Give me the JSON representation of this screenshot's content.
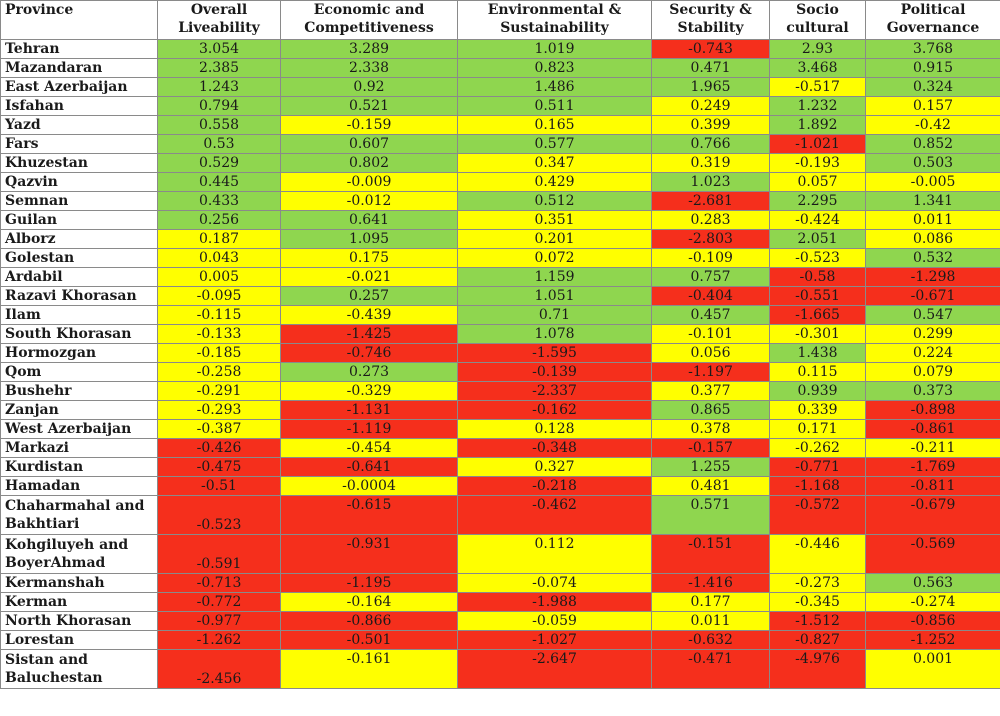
{
  "headers": [
    "Province",
    "Overall Liveability",
    "Economic and Competitiveness",
    "Environmental & Sustainability",
    "Security & Stability",
    "Socio cultural",
    "Political Governance"
  ],
  "colors": {
    "green": "#8fd64f",
    "yellow": "#ffff00",
    "red": "#f52f1c"
  },
  "rows": [
    {
      "province": "Tehran",
      "values": [
        "3.054",
        "3.289",
        "1.019",
        "-0.743",
        "2.93",
        "3.768"
      ],
      "colors": [
        "g",
        "g",
        "g",
        "r",
        "g",
        "g"
      ]
    },
    {
      "province": "Mazandaran",
      "values": [
        "2.385",
        "2.338",
        "0.823",
        "0.471",
        "3.468",
        "0.915"
      ],
      "colors": [
        "g",
        "g",
        "g",
        "g",
        "g",
        "g"
      ]
    },
    {
      "province": "East Azerbaijan",
      "values": [
        "1.243",
        "0.92",
        "1.486",
        "1.965",
        "-0.517",
        "0.324"
      ],
      "colors": [
        "g",
        "g",
        "g",
        "g",
        "y",
        "g"
      ]
    },
    {
      "province": "Isfahan",
      "values": [
        "0.794",
        "0.521",
        "0.511",
        "0.249",
        "1.232",
        "0.157"
      ],
      "colors": [
        "g",
        "g",
        "g",
        "y",
        "g",
        "y"
      ]
    },
    {
      "province": "Yazd",
      "values": [
        "0.558",
        "-0.159",
        "0.165",
        "0.399",
        "1.892",
        "-0.42"
      ],
      "colors": [
        "g",
        "y",
        "y",
        "y",
        "g",
        "y"
      ]
    },
    {
      "province": "Fars",
      "values": [
        "0.53",
        "0.607",
        "0.577",
        "0.766",
        "-1.021",
        "0.852"
      ],
      "colors": [
        "g",
        "g",
        "g",
        "g",
        "r",
        "g"
      ]
    },
    {
      "province": "Khuzestan",
      "values": [
        "0.529",
        "0.802",
        "0.347",
        "0.319",
        "-0.193",
        "0.503"
      ],
      "colors": [
        "g",
        "g",
        "y",
        "y",
        "y",
        "g"
      ]
    },
    {
      "province": "Qazvin",
      "values": [
        "0.445",
        "-0.009",
        "0.429",
        "1.023",
        "0.057",
        "-0.005"
      ],
      "colors": [
        "g",
        "y",
        "y",
        "g",
        "y",
        "y"
      ]
    },
    {
      "province": "Semnan",
      "values": [
        "0.433",
        "-0.012",
        "0.512",
        "-2.681",
        "2.295",
        "1.341"
      ],
      "colors": [
        "g",
        "y",
        "g",
        "r",
        "g",
        "g"
      ]
    },
    {
      "province": "Guilan",
      "values": [
        "0.256",
        "0.641",
        "0.351",
        "0.283",
        "-0.424",
        "0.011"
      ],
      "colors": [
        "g",
        "g",
        "y",
        "y",
        "y",
        "y"
      ]
    },
    {
      "province": "Alborz",
      "values": [
        "0.187",
        "1.095",
        "0.201",
        "-2.803",
        "2.051",
        "0.086"
      ],
      "colors": [
        "y",
        "g",
        "y",
        "r",
        "g",
        "y"
      ]
    },
    {
      "province": "Golestan",
      "values": [
        "0.043",
        "0.175",
        "0.072",
        "-0.109",
        "-0.523",
        "0.532"
      ],
      "colors": [
        "y",
        "y",
        "y",
        "y",
        "y",
        "g"
      ]
    },
    {
      "province": "Ardabil",
      "values": [
        "0.005",
        "-0.021",
        "1.159",
        "0.757",
        "-0.58",
        "-1.298"
      ],
      "colors": [
        "y",
        "y",
        "g",
        "g",
        "r",
        "r"
      ]
    },
    {
      "province": "Razavi Khorasan",
      "values": [
        "-0.095",
        "0.257",
        "1.051",
        "-0.404",
        "-0.551",
        "-0.671"
      ],
      "colors": [
        "y",
        "g",
        "g",
        "r",
        "r",
        "r"
      ]
    },
    {
      "province": "Ilam",
      "values": [
        "-0.115",
        "-0.439",
        "0.71",
        "0.457",
        "-1.665",
        "0.547"
      ],
      "colors": [
        "y",
        "y",
        "g",
        "g",
        "r",
        "g"
      ]
    },
    {
      "province": "South Khorasan",
      "values": [
        "-0.133",
        "-1.425",
        "1.078",
        "-0.101",
        "-0.301",
        "0.299"
      ],
      "colors": [
        "y",
        "r",
        "g",
        "y",
        "y",
        "y"
      ]
    },
    {
      "province": "Hormozgan",
      "values": [
        "-0.185",
        "-0.746",
        "-1.595",
        "0.056",
        "1.438",
        "0.224"
      ],
      "colors": [
        "y",
        "r",
        "r",
        "y",
        "g",
        "y"
      ]
    },
    {
      "province": "Qom",
      "values": [
        "-0.258",
        "0.273",
        "-0.139",
        "-1.197",
        "0.115",
        "0.079"
      ],
      "colors": [
        "y",
        "g",
        "r",
        "r",
        "y",
        "y"
      ]
    },
    {
      "province": "Bushehr",
      "values": [
        "-0.291",
        "-0.329",
        "-2.337",
        "0.377",
        "0.939",
        "0.373"
      ],
      "colors": [
        "y",
        "y",
        "r",
        "y",
        "g",
        "g"
      ]
    },
    {
      "province": "Zanjan",
      "values": [
        "-0.293",
        "-1.131",
        "-0.162",
        "0.865",
        "0.339",
        "-0.898"
      ],
      "colors": [
        "y",
        "r",
        "r",
        "g",
        "y",
        "r"
      ]
    },
    {
      "province": "West Azerbaijan",
      "values": [
        "-0.387",
        "-1.119",
        "0.128",
        "0.378",
        "0.171",
        "-0.861"
      ],
      "colors": [
        "y",
        "r",
        "y",
        "y",
        "y",
        "r"
      ]
    },
    {
      "province": "Markazi",
      "values": [
        "-0.426",
        "-0.454",
        "-0.348",
        "-0.157",
        "-0.262",
        "-0.211"
      ],
      "colors": [
        "r",
        "y",
        "r",
        "r",
        "y",
        "y"
      ]
    },
    {
      "province": "Kurdistan",
      "values": [
        "-0.475",
        "-0.641",
        "0.327",
        "1.255",
        "-0.771",
        "-1.769"
      ],
      "colors": [
        "r",
        "r",
        "y",
        "g",
        "r",
        "r"
      ]
    },
    {
      "province": "Hamadan",
      "values": [
        "-0.51",
        "-0.0004",
        "-0.218",
        "0.481",
        "-1.168",
        "-0.811"
      ],
      "colors": [
        "r",
        "y",
        "r",
        "y",
        "r",
        "r"
      ]
    },
    {
      "province": "Chaharmahal and Bakhtiari",
      "values": [
        "-0.523",
        "-0.615",
        "-0.462",
        "0.571",
        "-0.572",
        "-0.679"
      ],
      "colors": [
        "r",
        "r",
        "r",
        "g",
        "r",
        "r"
      ],
      "tall": true
    },
    {
      "province": "Kohgiluyeh and BoyerAhmad",
      "values": [
        "-0.591",
        "-0.931",
        "0.112",
        "-0.151",
        "-0.446",
        "-0.569"
      ],
      "colors": [
        "r",
        "r",
        "y",
        "r",
        "y",
        "r"
      ],
      "tall": true
    },
    {
      "province": "Kermanshah",
      "values": [
        "-0.713",
        "-1.195",
        "-0.074",
        "-1.416",
        "-0.273",
        "0.563"
      ],
      "colors": [
        "r",
        "r",
        "y",
        "r",
        "y",
        "g"
      ]
    },
    {
      "province": "Kerman",
      "values": [
        "-0.772",
        "-0.164",
        "-1.988",
        "0.177",
        "-0.345",
        "-0.274"
      ],
      "colors": [
        "r",
        "y",
        "r",
        "y",
        "y",
        "y"
      ]
    },
    {
      "province": "North Khorasan",
      "values": [
        "-0.977",
        "-0.866",
        "-0.059",
        "0.011",
        "-1.512",
        "-0.856"
      ],
      "colors": [
        "r",
        "r",
        "y",
        "y",
        "r",
        "r"
      ]
    },
    {
      "province": "Lorestan",
      "values": [
        "-1.262",
        "-0.501",
        "-1.027",
        "-0.632",
        "-0.827",
        "-1.252"
      ],
      "colors": [
        "r",
        "r",
        "r",
        "r",
        "r",
        "r"
      ]
    },
    {
      "province": "Sistan and Baluchestan",
      "values": [
        "-2.456",
        "-0.161",
        "-2.647",
        "-0.471",
        "-4.976",
        "0.001"
      ],
      "colors": [
        "r",
        "y",
        "r",
        "r",
        "r",
        "y"
      ],
      "tall": true
    }
  ]
}
